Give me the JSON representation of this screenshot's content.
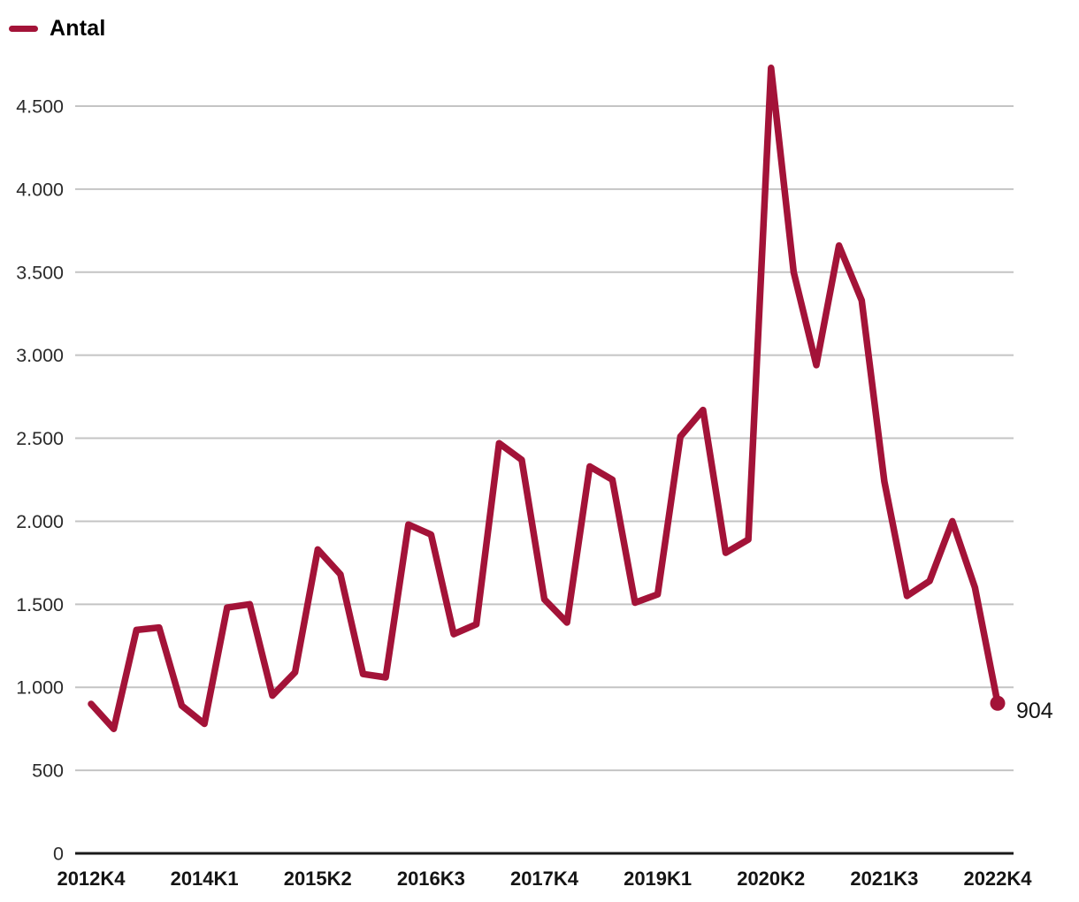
{
  "legend": {
    "label": "Antal"
  },
  "colors": {
    "series": "#a31338",
    "gridline": "#c4c4c4",
    "zero_axis": "#1a1a1a",
    "tick_text": "#2b2b2b"
  },
  "chart_data": {
    "type": "line",
    "title": "",
    "xlabel": "",
    "ylabel": "",
    "grid": "horizontal",
    "legend_position": "top-left",
    "ylim": [
      0,
      4500
    ],
    "x": [
      "2012K4",
      "2013K1",
      "2013K2",
      "2013K3",
      "2013K4",
      "2014K1",
      "2014K2",
      "2014K3",
      "2014K4",
      "2015K1",
      "2015K2",
      "2015K3",
      "2015K4",
      "2016K1",
      "2016K2",
      "2016K3",
      "2016K4",
      "2017K1",
      "2017K2",
      "2017K3",
      "2017K4",
      "2018K1",
      "2018K2",
      "2018K3",
      "2018K4",
      "2019K1",
      "2019K2",
      "2019K3",
      "2019K4",
      "2020K1",
      "2020K2",
      "2020K3",
      "2020K4",
      "2021K1",
      "2021K2",
      "2021K3",
      "2021K4",
      "2022K1",
      "2022K2",
      "2022K3",
      "2022K4"
    ],
    "x_tick_indices": [
      0,
      5,
      10,
      15,
      20,
      25,
      30,
      35,
      40
    ],
    "x_tick_labels": [
      "2012K4",
      "2014K1",
      "2015K2",
      "2016K3",
      "2017K4",
      "2019K1",
      "2020K2",
      "2021K3",
      "2022K4"
    ],
    "y_ticks": [
      0,
      500,
      1000,
      1500,
      2000,
      2500,
      3000,
      3500,
      4000,
      4500
    ],
    "y_tick_labels": [
      "0",
      "500",
      "1.000",
      "1.500",
      "2.000",
      "2.500",
      "3.000",
      "3.500",
      "4.000",
      "4.500"
    ],
    "series": [
      {
        "name": "Antal",
        "values": [
          900,
          750,
          1345,
          1360,
          890,
          780,
          1480,
          1500,
          950,
          1090,
          1830,
          1680,
          1080,
          1060,
          1980,
          1920,
          1320,
          1380,
          2470,
          2370,
          1530,
          1390,
          2330,
          2250,
          1510,
          1560,
          2510,
          2670,
          1810,
          1890,
          4730,
          3500,
          2940,
          3660,
          3330,
          2240,
          1550,
          1640,
          2000,
          1600,
          904
        ]
      }
    ],
    "end_label": "904"
  }
}
